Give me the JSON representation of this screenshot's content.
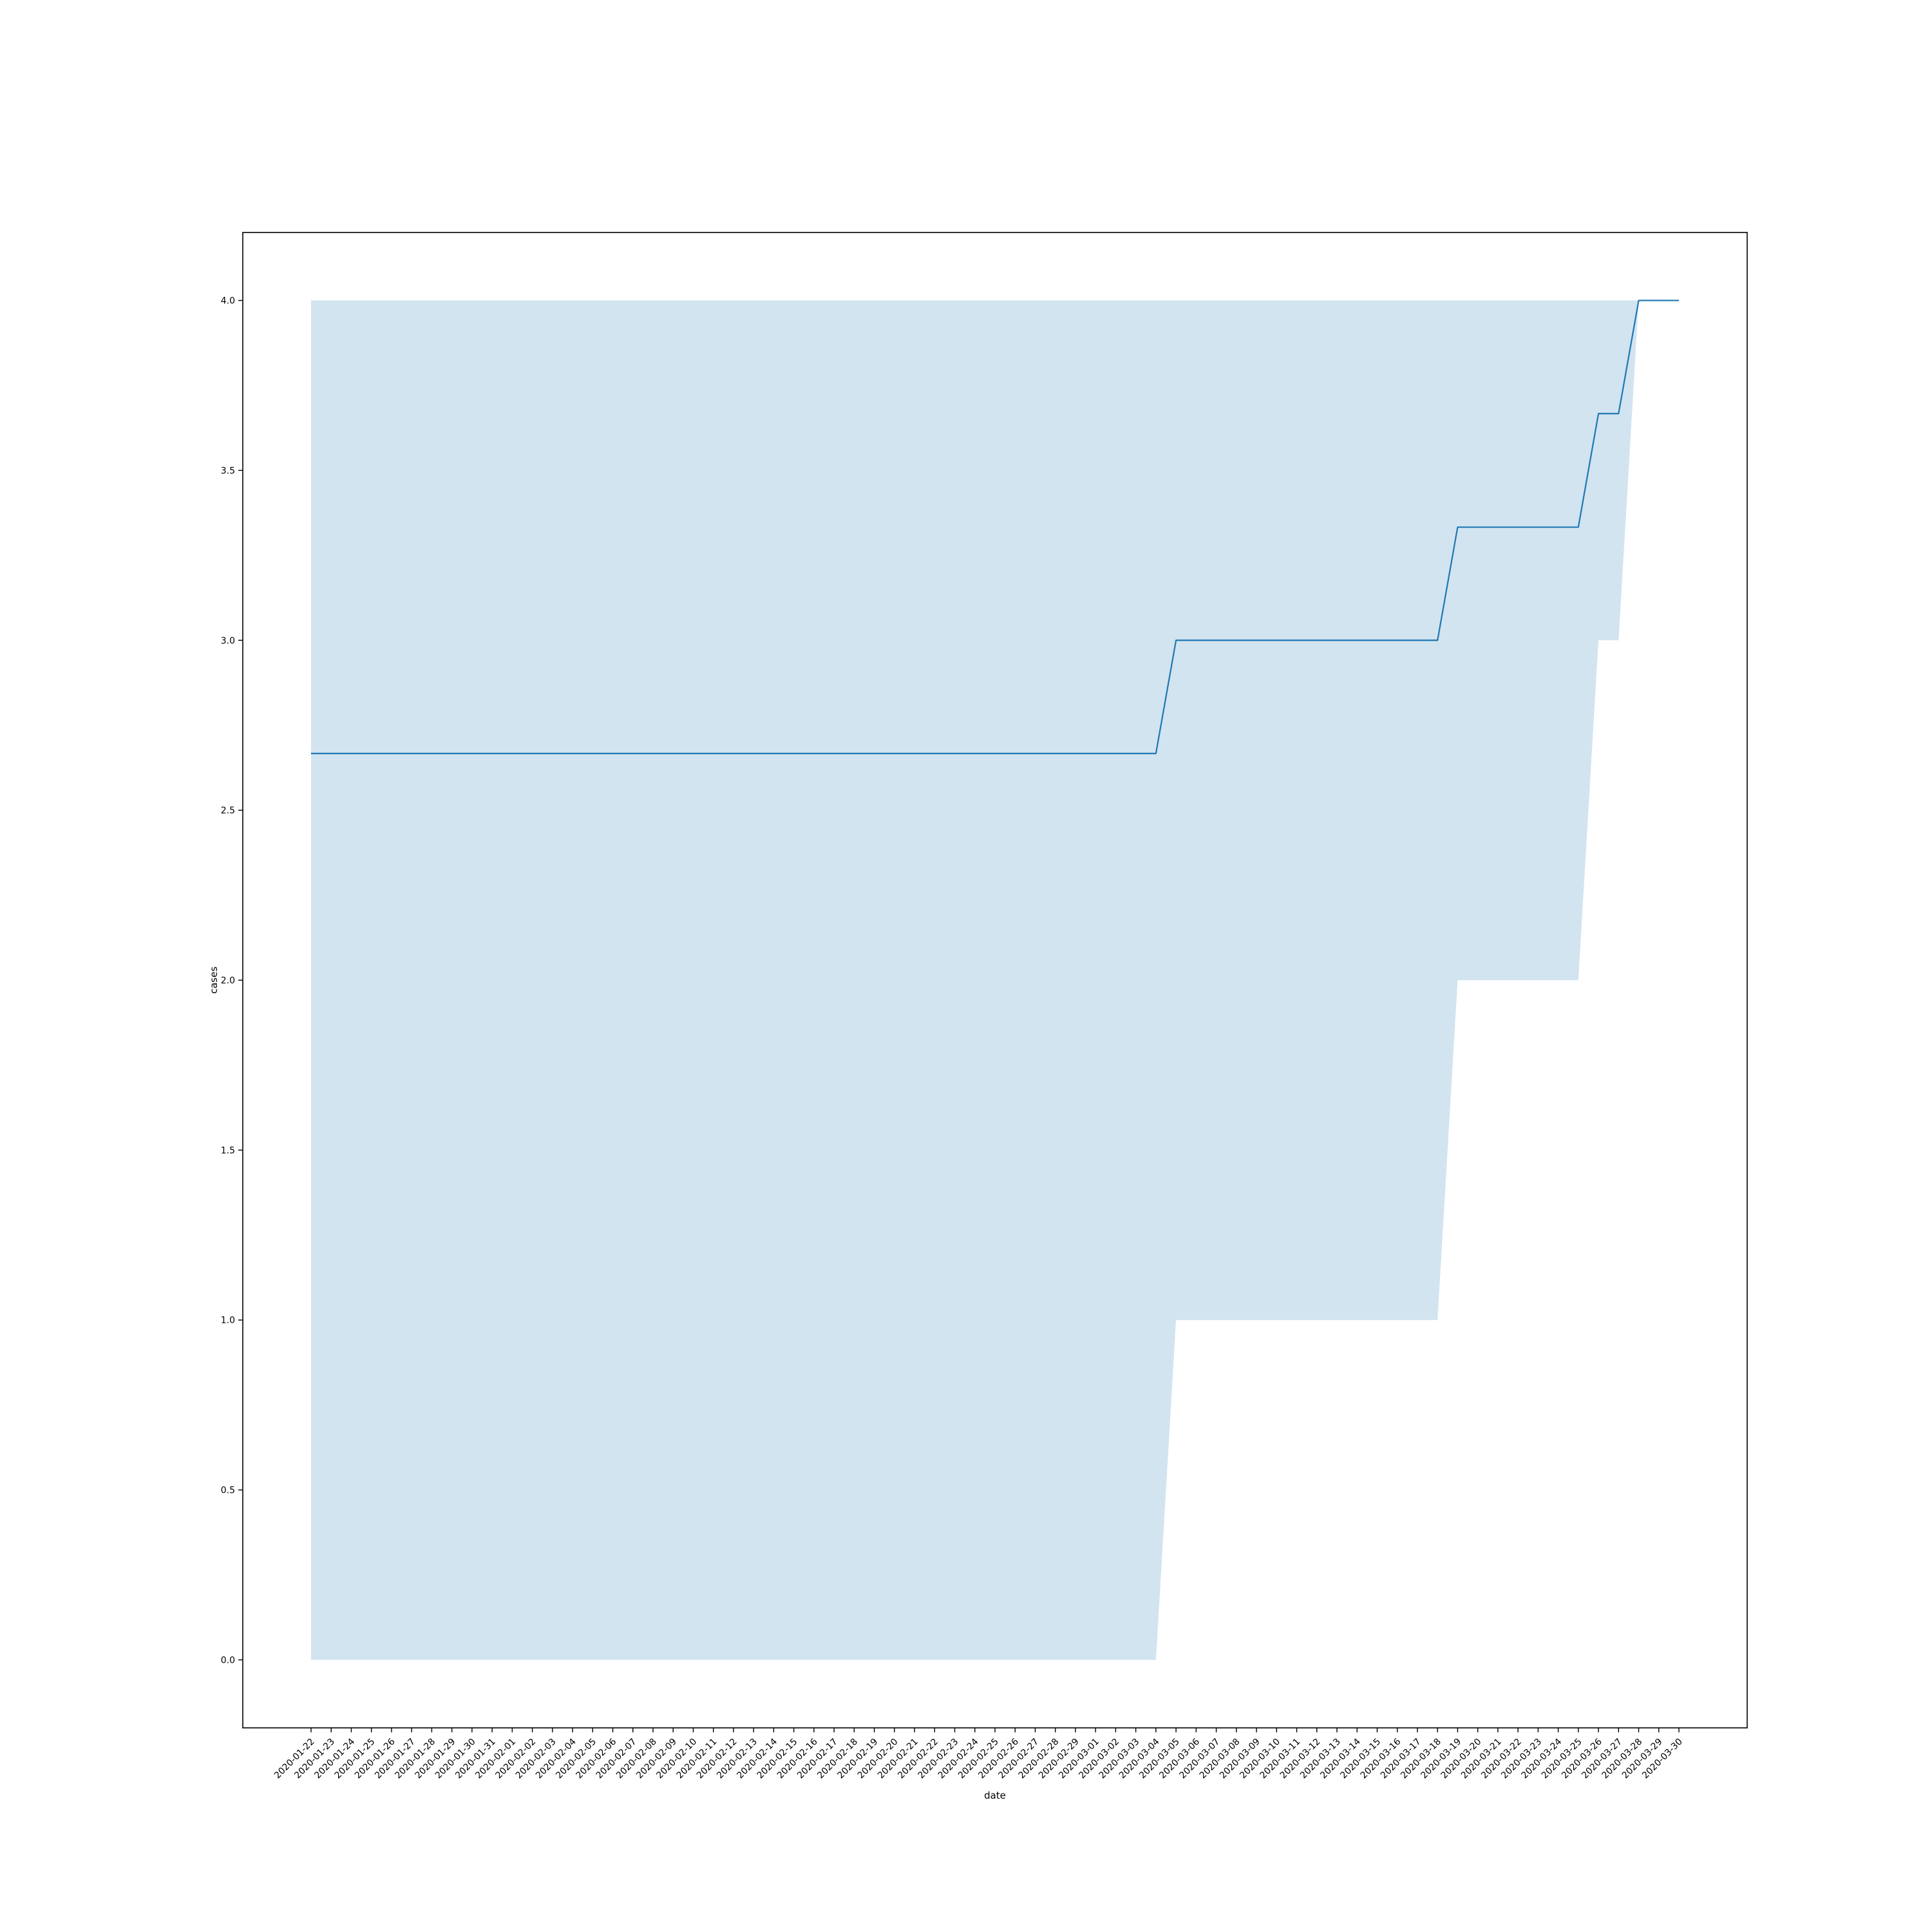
{
  "chart_data": {
    "type": "line",
    "xlabel": "date",
    "ylabel": "cases",
    "ylim": [
      -0.2,
      4.2
    ],
    "yticks": [
      "0.0",
      "0.5",
      "1.0",
      "1.5",
      "2.0",
      "2.5",
      "3.0",
      "3.5",
      "4.0"
    ],
    "grid": false,
    "legend": "none",
    "colors": {
      "line": "#1f77b4",
      "band": "#1f77b4",
      "band_opacity": 0.2,
      "frame": "#000000"
    },
    "x": [
      "2020-01-22",
      "2020-01-23",
      "2020-01-24",
      "2020-01-25",
      "2020-01-26",
      "2020-01-27",
      "2020-01-28",
      "2020-01-29",
      "2020-01-30",
      "2020-01-31",
      "2020-02-01",
      "2020-02-02",
      "2020-02-03",
      "2020-02-04",
      "2020-02-05",
      "2020-02-06",
      "2020-02-07",
      "2020-02-08",
      "2020-02-09",
      "2020-02-10",
      "2020-02-11",
      "2020-02-12",
      "2020-02-13",
      "2020-02-14",
      "2020-02-15",
      "2020-02-16",
      "2020-02-17",
      "2020-02-18",
      "2020-02-19",
      "2020-02-20",
      "2020-02-21",
      "2020-02-22",
      "2020-02-23",
      "2020-02-24",
      "2020-02-25",
      "2020-02-26",
      "2020-02-27",
      "2020-02-28",
      "2020-02-29",
      "2020-03-01",
      "2020-03-02",
      "2020-03-03",
      "2020-03-04",
      "2020-03-05",
      "2020-03-06",
      "2020-03-07",
      "2020-03-08",
      "2020-03-09",
      "2020-03-10",
      "2020-03-11",
      "2020-03-12",
      "2020-03-13",
      "2020-03-14",
      "2020-03-15",
      "2020-03-16",
      "2020-03-17",
      "2020-03-18",
      "2020-03-19",
      "2020-03-20",
      "2020-03-21",
      "2020-03-22",
      "2020-03-23",
      "2020-03-24",
      "2020-03-25",
      "2020-03-26",
      "2020-03-27",
      "2020-03-28",
      "2020-03-29",
      "2020-03-30"
    ],
    "series": [
      {
        "values": [
          2.667,
          2.667,
          2.667,
          2.667,
          2.667,
          2.667,
          2.667,
          2.667,
          2.667,
          2.667,
          2.667,
          2.667,
          2.667,
          2.667,
          2.667,
          2.667,
          2.667,
          2.667,
          2.667,
          2.667,
          2.667,
          2.667,
          2.667,
          2.667,
          2.667,
          2.667,
          2.667,
          2.667,
          2.667,
          2.667,
          2.667,
          2.667,
          2.667,
          2.667,
          2.667,
          2.667,
          2.667,
          2.667,
          2.667,
          2.667,
          2.667,
          2.667,
          2.667,
          3.0,
          3.0,
          3.0,
          3.0,
          3.0,
          3.0,
          3.0,
          3.0,
          3.0,
          3.0,
          3.0,
          3.0,
          3.0,
          3.0,
          3.333,
          3.333,
          3.333,
          3.333,
          3.333,
          3.333,
          3.333,
          3.667,
          3.667,
          4.0,
          4.0,
          4.0
        ],
        "ci_lower": [
          0,
          0,
          0,
          0,
          0,
          0,
          0,
          0,
          0,
          0,
          0,
          0,
          0,
          0,
          0,
          0,
          0,
          0,
          0,
          0,
          0,
          0,
          0,
          0,
          0,
          0,
          0,
          0,
          0,
          0,
          0,
          0,
          0,
          0,
          0,
          0,
          0,
          0,
          0,
          0,
          0,
          0,
          0,
          1,
          1,
          1,
          1,
          1,
          1,
          1,
          1,
          1,
          1,
          1,
          1,
          1,
          1,
          2,
          2,
          2,
          2,
          2,
          2,
          2,
          3,
          3,
          4,
          4,
          4
        ],
        "ci_upper": [
          4,
          4,
          4,
          4,
          4,
          4,
          4,
          4,
          4,
          4,
          4,
          4,
          4,
          4,
          4,
          4,
          4,
          4,
          4,
          4,
          4,
          4,
          4,
          4,
          4,
          4,
          4,
          4,
          4,
          4,
          4,
          4,
          4,
          4,
          4,
          4,
          4,
          4,
          4,
          4,
          4,
          4,
          4,
          4,
          4,
          4,
          4,
          4,
          4,
          4,
          4,
          4,
          4,
          4,
          4,
          4,
          4,
          4,
          4,
          4,
          4,
          4,
          4,
          4,
          4,
          4,
          4,
          4,
          4
        ]
      }
    ]
  }
}
